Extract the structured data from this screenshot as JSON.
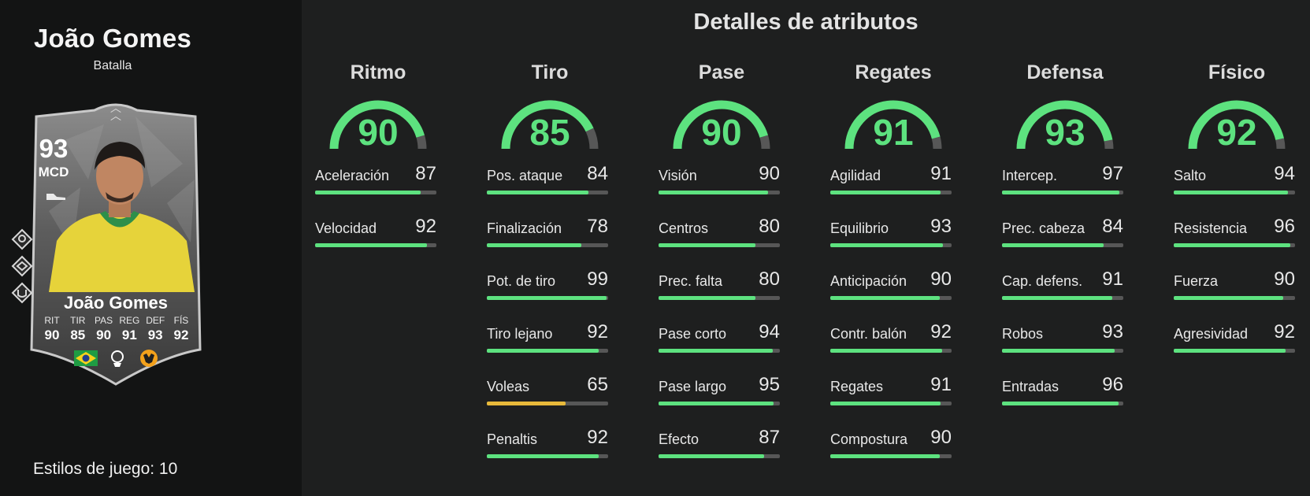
{
  "player": {
    "name": "João Gomes",
    "subtitle": "Batalla",
    "playstyles_label": "Estilos de juego: 10"
  },
  "card": {
    "rating": "93",
    "position": "MCD",
    "name": "João Gomes",
    "stats": [
      {
        "label": "RIT",
        "value": "90"
      },
      {
        "label": "TIR",
        "value": "85"
      },
      {
        "label": "PAS",
        "value": "90"
      },
      {
        "label": "REG",
        "value": "91"
      },
      {
        "label": "DEF",
        "value": "93"
      },
      {
        "label": "FÍS",
        "value": "92"
      }
    ],
    "badges": [
      "brazil-flag",
      "premier-league-logo",
      "wolves-crest"
    ]
  },
  "attributes_title": "Detalles de atributos",
  "colors": {
    "green": "#5de27f",
    "yellow": "#e8b93a",
    "track": "#575757"
  },
  "categories": [
    {
      "name": "Ritmo",
      "value": 90,
      "stats": [
        {
          "label": "Aceleración",
          "value": 87
        },
        {
          "label": "Velocidad",
          "value": 92
        }
      ]
    },
    {
      "name": "Tiro",
      "value": 85,
      "stats": [
        {
          "label": "Pos. ataque",
          "value": 84
        },
        {
          "label": "Finalización",
          "value": 78
        },
        {
          "label": "Pot. de tiro",
          "value": 99
        },
        {
          "label": "Tiro lejano",
          "value": 92
        },
        {
          "label": "Voleas",
          "value": 65
        },
        {
          "label": "Penaltis",
          "value": 92
        }
      ]
    },
    {
      "name": "Pase",
      "value": 90,
      "stats": [
        {
          "label": "Visión",
          "value": 90
        },
        {
          "label": "Centros",
          "value": 80
        },
        {
          "label": "Prec. falta",
          "value": 80
        },
        {
          "label": "Pase corto",
          "value": 94
        },
        {
          "label": "Pase largo",
          "value": 95
        },
        {
          "label": "Efecto",
          "value": 87
        }
      ]
    },
    {
      "name": "Regates",
      "value": 91,
      "stats": [
        {
          "label": "Agilidad",
          "value": 91
        },
        {
          "label": "Equilibrio",
          "value": 93
        },
        {
          "label": "Anticipación",
          "value": 90
        },
        {
          "label": "Contr. balón",
          "value": 92
        },
        {
          "label": "Regates",
          "value": 91
        },
        {
          "label": "Compostura",
          "value": 90
        }
      ]
    },
    {
      "name": "Defensa",
      "value": 93,
      "stats": [
        {
          "label": "Intercep.",
          "value": 97
        },
        {
          "label": "Prec. cabeza",
          "value": 84
        },
        {
          "label": "Cap. defens.",
          "value": 91
        },
        {
          "label": "Robos",
          "value": 93
        },
        {
          "label": "Entradas",
          "value": 96
        }
      ]
    },
    {
      "name": "Físico",
      "value": 92,
      "stats": [
        {
          "label": "Salto",
          "value": 94
        },
        {
          "label": "Resistencia",
          "value": 96
        },
        {
          "label": "Fuerza",
          "value": 90
        },
        {
          "label": "Agresividad",
          "value": 92
        }
      ]
    }
  ]
}
